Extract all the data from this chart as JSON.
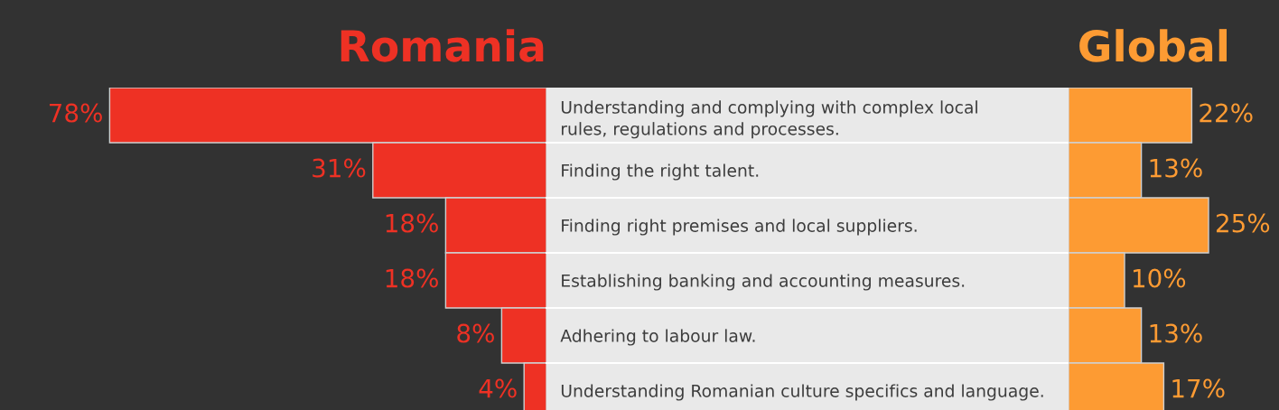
{
  "chart_data": [
    {
      "type": "bar",
      "orientation": "horizontal",
      "legend": false,
      "title": "Romania",
      "color": "#ee3124",
      "categories": [
        "Understanding and complying with complex local\nrules, regulations and processes.",
        "Finding the right talent.",
        "Finding right premises and local suppliers.",
        "Establishing banking and accounting measures.",
        "Adhering to labour law.",
        "Understanding Romanian culture specifics and language."
      ],
      "values": [
        78,
        31,
        18,
        18,
        8,
        4
      ],
      "value_labels": [
        "78%",
        "31%",
        "18%",
        "18%",
        "8%",
        "4%"
      ]
    },
    {
      "type": "bar",
      "orientation": "horizontal",
      "legend": false,
      "title": "Global",
      "color": "#fd9b33",
      "categories": [
        null,
        null,
        null,
        null,
        null,
        null
      ],
      "values": [
        22,
        13,
        25,
        10,
        13,
        17
      ],
      "value_labels": [
        "22%",
        "13%",
        "25%",
        "10%",
        "13%",
        "17%"
      ]
    }
  ]
}
